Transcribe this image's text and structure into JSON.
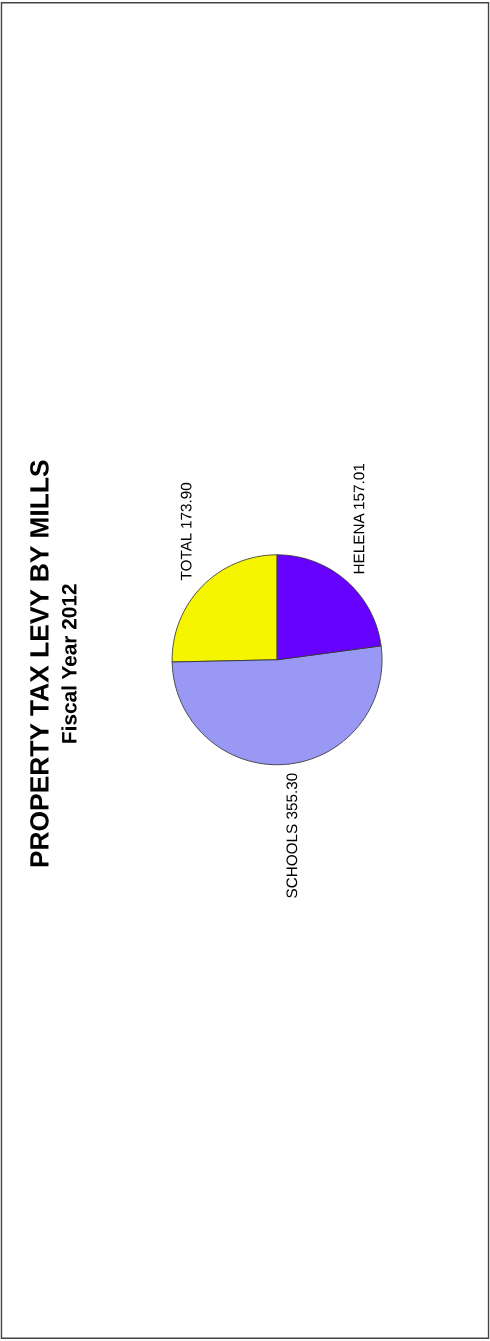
{
  "chart_data": {
    "type": "pie",
    "title": "PROPERTY TAX LEVY BY MILLS",
    "subtitle": "Fiscal Year 2012",
    "categories": [
      "TOTAL",
      "SCHOOLS",
      "HELENA"
    ],
    "values": [
      173.9,
      355.3,
      157.01
    ],
    "value_labels": [
      "173.90",
      "355.30",
      "157.01"
    ],
    "colors": [
      "#f5f500",
      "#9999f5",
      "#6600ff"
    ]
  }
}
